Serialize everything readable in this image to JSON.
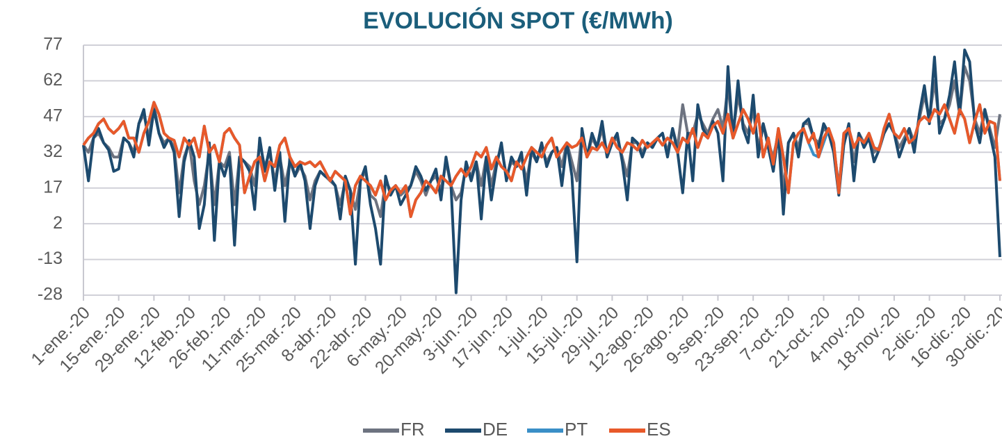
{
  "chart_data": {
    "type": "line",
    "title": "EVOLUCIÓN SPOT  (€/MWh)",
    "categories": [
      "1-ene.-20",
      null,
      null,
      null,
      null,
      null,
      null,
      "15-ene.-20",
      null,
      null,
      null,
      null,
      null,
      null,
      "29-ene.-20",
      null,
      null,
      null,
      null,
      null,
      null,
      "12-feb.-20",
      null,
      null,
      null,
      null,
      null,
      null,
      "26-feb.-20",
      null,
      null,
      null,
      null,
      null,
      null,
      "11-mar.-20",
      null,
      null,
      null,
      null,
      null,
      null,
      "25-mar.-20",
      null,
      null,
      null,
      null,
      null,
      null,
      "8-abr.-20",
      null,
      null,
      null,
      null,
      null,
      null,
      "22-abr.-20",
      null,
      null,
      null,
      null,
      null,
      null,
      "6-may.-20",
      null,
      null,
      null,
      null,
      null,
      null,
      "20-may.-20",
      null,
      null,
      null,
      null,
      null,
      null,
      "3-jun.-20",
      null,
      null,
      null,
      null,
      null,
      null,
      "17-jun.-20",
      null,
      null,
      null,
      null,
      null,
      null,
      "1-jul.-20",
      null,
      null,
      null,
      null,
      null,
      null,
      "15-jul.-20",
      null,
      null,
      null,
      null,
      null,
      null,
      "29-jul.-20",
      null,
      null,
      null,
      null,
      null,
      null,
      "12-ago.-20",
      null,
      null,
      null,
      null,
      null,
      null,
      "26-ago.-20",
      null,
      null,
      null,
      null,
      null,
      null,
      "9-sep.-20",
      null,
      null,
      null,
      null,
      null,
      null,
      "23-sep.-20",
      null,
      null,
      null,
      null,
      null,
      null,
      "7-oct.-20",
      null,
      null,
      null,
      null,
      null,
      null,
      "21-oct.-20",
      null,
      null,
      null,
      null,
      null,
      null,
      "4-nov.-20",
      null,
      null,
      null,
      null,
      null,
      null,
      "18-nov.-20",
      null,
      null,
      null,
      null,
      null,
      null,
      "2-dic.-20",
      null,
      null,
      null,
      null,
      null,
      null,
      "16-dic.-20",
      null,
      null,
      null,
      null,
      null,
      null,
      "30-dic.-20"
    ],
    "series": [
      {
        "name": "FR",
        "color": "#6d7380",
        "values": [
          35,
          32,
          38,
          40,
          36,
          34,
          30,
          30,
          38,
          36,
          32,
          44,
          48,
          38,
          52,
          40,
          36,
          38,
          34,
          15,
          30,
          36,
          20,
          10,
          18,
          32,
          10,
          28,
          26,
          32,
          10,
          30,
          28,
          26,
          18,
          36,
          26,
          32,
          20,
          30,
          18,
          28,
          22,
          26,
          22,
          12,
          20,
          24,
          22,
          20,
          18,
          10,
          20,
          16,
          8,
          20,
          24,
          14,
          12,
          5,
          20,
          16,
          18,
          14,
          16,
          18,
          24,
          20,
          14,
          20,
          22,
          16,
          28,
          18,
          12,
          15,
          26,
          22,
          28,
          18,
          30,
          18,
          28,
          34,
          22,
          28,
          26,
          30,
          20,
          32,
          28,
          34,
          28,
          32,
          34,
          26,
          36,
          28,
          20,
          40,
          30,
          38,
          34,
          42,
          30,
          36,
          38,
          30,
          22,
          36,
          36,
          32,
          36,
          34,
          38,
          40,
          32,
          42,
          34,
          52,
          40,
          40,
          48,
          44,
          40,
          46,
          50,
          42,
          60,
          40,
          56,
          44,
          40,
          50,
          34,
          44,
          36,
          30,
          40,
          16,
          36,
          40,
          34,
          44,
          44,
          38,
          36,
          42,
          40,
          34,
          18,
          36,
          42,
          28,
          40,
          36,
          38,
          32,
          34,
          40,
          44,
          40,
          34,
          38,
          42,
          36,
          46,
          56,
          46,
          62,
          44,
          46,
          52,
          62,
          48,
          68,
          62,
          46,
          40,
          50,
          42,
          34,
          48
        ]
      },
      {
        "name": "DE",
        "color": "#1d4a6e",
        "values": [
          35,
          20,
          38,
          42,
          36,
          33,
          24,
          25,
          38,
          36,
          30,
          44,
          50,
          35,
          50,
          40,
          34,
          38,
          32,
          5,
          28,
          37,
          30,
          0,
          10,
          36,
          -5,
          28,
          22,
          30,
          -7,
          30,
          28,
          24,
          8,
          38,
          24,
          34,
          16,
          32,
          3,
          30,
          22,
          28,
          20,
          0,
          18,
          24,
          22,
          21,
          18,
          4,
          22,
          16,
          -15,
          20,
          26,
          10,
          0,
          -15,
          22,
          14,
          18,
          10,
          14,
          18,
          26,
          22,
          16,
          20,
          25,
          12,
          30,
          18,
          -27,
          12,
          28,
          20,
          28,
          4,
          30,
          12,
          26,
          36,
          20,
          30,
          26,
          32,
          14,
          34,
          28,
          36,
          26,
          32,
          34,
          18,
          36,
          22,
          -14,
          42,
          30,
          40,
          34,
          45,
          30,
          36,
          40,
          28,
          12,
          38,
          36,
          30,
          36,
          34,
          38,
          40,
          30,
          42,
          32,
          15,
          40,
          20,
          52,
          42,
          38,
          45,
          40,
          20,
          68,
          38,
          62,
          42,
          36,
          56,
          30,
          44,
          34,
          24,
          40,
          6,
          36,
          40,
          30,
          44,
          46,
          38,
          34,
          44,
          40,
          32,
          14,
          35,
          44,
          20,
          40,
          34,
          38,
          28,
          33,
          40,
          44,
          40,
          30,
          36,
          42,
          32,
          48,
          60,
          44,
          72,
          40,
          46,
          56,
          70,
          48,
          75,
          70,
          44,
          36,
          50,
          40,
          30,
          -12
        ]
      },
      {
        "name": "PT",
        "color": "#3a8fc7",
        "values": [
          35,
          38,
          40,
          44,
          46,
          42,
          40,
          42,
          45,
          38,
          38,
          32,
          40,
          45,
          53,
          48,
          40,
          38,
          37,
          30,
          38,
          35,
          38,
          30,
          43,
          32,
          35,
          28,
          40,
          42,
          38,
          35,
          15,
          22,
          28,
          30,
          20,
          28,
          26,
          35,
          38,
          30,
          26,
          28,
          27,
          28,
          26,
          28,
          24,
          20,
          24,
          22,
          20,
          6,
          18,
          22,
          20,
          18,
          14,
          20,
          12,
          16,
          18,
          15,
          18,
          5,
          12,
          15,
          20,
          18,
          15,
          22,
          20,
          18,
          22,
          25,
          22,
          26,
          32,
          30,
          34,
          25,
          30,
          26,
          24,
          20,
          28,
          25,
          30,
          34,
          32,
          30,
          35,
          38,
          30,
          33,
          36,
          34,
          35,
          38,
          30,
          34,
          33,
          36,
          32,
          38,
          34,
          32,
          36,
          35,
          33,
          37,
          34,
          36,
          38,
          35,
          38,
          36,
          32,
          38,
          36,
          42,
          34,
          40,
          38,
          43,
          45,
          40,
          48,
          38,
          44,
          50,
          46,
          40,
          48,
          30,
          38,
          27,
          42,
          30,
          15,
          36,
          40,
          42,
          36,
          31,
          30,
          36,
          42,
          36,
          15,
          40,
          42,
          34,
          38,
          36,
          40,
          34,
          33,
          42,
          48,
          40,
          38,
          42,
          36,
          38,
          45,
          47,
          45,
          50,
          48,
          52,
          46,
          40,
          50,
          46,
          36,
          45,
          52,
          40,
          45,
          44,
          20
        ]
      },
      {
        "name": "ES",
        "color": "#e8592a",
        "values": [
          35,
          38,
          40,
          44,
          46,
          42,
          40,
          42,
          45,
          38,
          38,
          32,
          40,
          45,
          53,
          48,
          40,
          38,
          37,
          30,
          38,
          35,
          38,
          30,
          43,
          32,
          35,
          28,
          40,
          42,
          38,
          35,
          15,
          22,
          28,
          30,
          20,
          28,
          26,
          35,
          38,
          30,
          26,
          28,
          27,
          28,
          26,
          28,
          24,
          20,
          24,
          22,
          20,
          6,
          18,
          22,
          20,
          18,
          14,
          20,
          12,
          16,
          18,
          15,
          18,
          5,
          12,
          15,
          20,
          18,
          15,
          22,
          20,
          18,
          22,
          25,
          22,
          26,
          32,
          30,
          34,
          25,
          30,
          26,
          24,
          20,
          28,
          25,
          30,
          34,
          32,
          30,
          35,
          38,
          30,
          33,
          36,
          34,
          35,
          38,
          30,
          34,
          33,
          36,
          32,
          38,
          34,
          32,
          36,
          35,
          33,
          37,
          34,
          36,
          38,
          35,
          38,
          36,
          32,
          38,
          36,
          42,
          34,
          40,
          38,
          43,
          45,
          40,
          48,
          38,
          44,
          50,
          46,
          40,
          48,
          30,
          38,
          27,
          42,
          30,
          15,
          36,
          40,
          42,
          36,
          40,
          30,
          38,
          42,
          36,
          15,
          40,
          42,
          34,
          38,
          36,
          40,
          34,
          33,
          42,
          48,
          40,
          38,
          42,
          36,
          38,
          45,
          47,
          45,
          50,
          48,
          52,
          46,
          40,
          50,
          46,
          36,
          45,
          52,
          40,
          45,
          44,
          20
        ]
      }
    ],
    "ylim": [
      -28,
      77
    ],
    "yticks": [
      -28,
      -13,
      2,
      17,
      32,
      47,
      62,
      77
    ],
    "grid": true,
    "legend": "bottom"
  }
}
